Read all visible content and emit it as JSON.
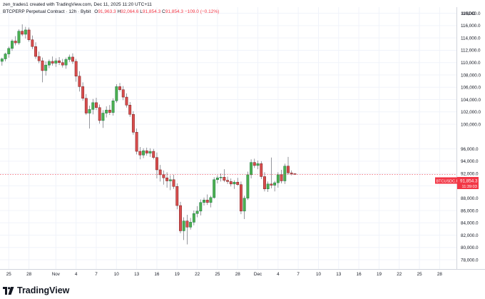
{
  "header": {
    "created_by": "zen_trades1 created with TradingView.com, Dec 11, 2025 11:20 UTC+11",
    "symbol_line": "BTCPERP Perpetual Contract · 12h · Bybit",
    "ohlc": {
      "o_label": "O",
      "o": "91,963.3",
      "h_label": "H",
      "h": "92,064.6",
      "l_label": "L",
      "l": "91,854.3",
      "c_label": "C",
      "c": "91,854.3",
      "change": "−109.0 (−0.12%)"
    }
  },
  "price_axis": {
    "currency": "USDC"
  },
  "last_price_tag": {
    "symbol": "BTCUSDC.P",
    "price": "91,854.3",
    "countdown": "11:39:03"
  },
  "footer": {
    "brand": "TradingView"
  },
  "colors": {
    "up": "#26a69a",
    "down": "#ef5350",
    "up_fill": "#4caf50",
    "down_fill": "#d84d4d",
    "tag": "#f23645"
  },
  "chart_data": {
    "type": "candlestick",
    "y_unit": "USDC",
    "ylim": [
      76500,
      119000
    ],
    "y_ticks": [
      "78,000.0",
      "80,000.0",
      "82,000.0",
      "84,000.0",
      "86,000.0",
      "88,000.0",
      "90,000.0",
      "92,000.0",
      "94,000.0",
      "96,000.0",
      "100,000.0",
      "102,000.0",
      "104,000.0",
      "106,000.0",
      "108,000.0",
      "110,000.0",
      "112,000.0",
      "114,000.0",
      "116,000.0",
      "118,000.0"
    ],
    "y_tick_values": [
      78000,
      80000,
      82000,
      84000,
      86000,
      88000,
      90000,
      92000,
      94000,
      96000,
      100000,
      102000,
      104000,
      106000,
      108000,
      110000,
      112000,
      114000,
      116000,
      118000
    ],
    "x_tick_labels": [
      "25",
      "28",
      "Nov",
      "4",
      "7",
      "10",
      "13",
      "16",
      "19",
      "22",
      "25",
      "28",
      "Dec",
      "4",
      "7",
      "10",
      "13",
      "16",
      "19",
      "22",
      "25",
      "28"
    ],
    "x_tick_days": [
      -7,
      -4,
      0,
      3,
      6,
      9,
      12,
      15,
      18,
      21,
      24,
      27,
      30,
      33,
      36,
      39,
      42,
      45,
      48,
      51,
      54,
      57
    ],
    "x_range_days": [
      -8.3,
      59.5
    ],
    "bar_interval_days": 0.5,
    "first_bar_day": -8.0,
    "last_price": 91854.3,
    "candles": [
      [
        110200,
        110800,
        109500,
        110600
      ],
      [
        110600,
        111600,
        110200,
        111400
      ],
      [
        111400,
        112600,
        110800,
        112300
      ],
      [
        112300,
        113800,
        111900,
        113500
      ],
      [
        113500,
        114300,
        112800,
        113200
      ],
      [
        113200,
        115400,
        112900,
        115100
      ],
      [
        115100,
        116200,
        114300,
        114600
      ],
      [
        114600,
        115800,
        113900,
        115300
      ],
      [
        115300,
        115700,
        113400,
        113700
      ],
      [
        113700,
        114400,
        112200,
        112600
      ],
      [
        112600,
        113300,
        110600,
        111000
      ],
      [
        111000,
        111800,
        109900,
        110300
      ],
      [
        110300,
        110800,
        106800,
        108700
      ],
      [
        108700,
        110200,
        107900,
        109600
      ],
      [
        109600,
        110500,
        109100,
        110200
      ],
      [
        110200,
        111000,
        109500,
        109900
      ],
      [
        109900,
        110700,
        109300,
        110300
      ],
      [
        110300,
        110900,
        109600,
        110000
      ],
      [
        110000,
        110600,
        109200,
        109600
      ],
      [
        109600,
        110800,
        109000,
        110500
      ],
      [
        110500,
        111300,
        110100,
        110900
      ],
      [
        110900,
        111500,
        109800,
        110200
      ],
      [
        110200,
        110600,
        106900,
        107800
      ],
      [
        107800,
        108600,
        105300,
        106100
      ],
      [
        106100,
        106800,
        103800,
        104200
      ],
      [
        104200,
        104900,
        101500,
        101800
      ],
      [
        101800,
        103000,
        99300,
        102400
      ],
      [
        102400,
        104100,
        101600,
        103500
      ],
      [
        103500,
        104300,
        102300,
        102700
      ],
      [
        102700,
        103200,
        100100,
        100600
      ],
      [
        100600,
        102300,
        99400,
        101800
      ],
      [
        101800,
        102900,
        101100,
        102300
      ],
      [
        102300,
        103100,
        101500,
        101900
      ],
      [
        101900,
        104200,
        101400,
        103800
      ],
      [
        103800,
        106500,
        103500,
        106100
      ],
      [
        106100,
        106700,
        105300,
        105600
      ],
      [
        105600,
        106200,
        103900,
        104400
      ],
      [
        104400,
        105000,
        102700,
        103100
      ],
      [
        103100,
        103600,
        101200,
        101600
      ],
      [
        101600,
        102100,
        98300,
        98700
      ],
      [
        98700,
        99300,
        95100,
        95600
      ],
      [
        95600,
        96300,
        94300,
        95000
      ],
      [
        95000,
        96100,
        94500,
        95700
      ],
      [
        95700,
        96200,
        94900,
        95300
      ],
      [
        95300,
        96100,
        94700,
        95600
      ],
      [
        95600,
        96000,
        94300,
        94600
      ],
      [
        94600,
        95400,
        91200,
        92600
      ],
      [
        92600,
        93400,
        90700,
        91800
      ],
      [
        91800,
        92500,
        90200,
        91300
      ],
      [
        91300,
        92200,
        89700,
        90800
      ],
      [
        90800,
        91700,
        89300,
        91000
      ],
      [
        91000,
        91800,
        89500,
        89900
      ],
      [
        89900,
        90400,
        86200,
        86800
      ],
      [
        86800,
        87400,
        82300,
        82700
      ],
      [
        82700,
        84900,
        81200,
        84300
      ],
      [
        84300,
        85300,
        80500,
        83300
      ],
      [
        83300,
        84800,
        82900,
        84100
      ],
      [
        84100,
        86000,
        83600,
        85500
      ],
      [
        85500,
        86700,
        84900,
        85900
      ],
      [
        85900,
        87800,
        85200,
        87300
      ],
      [
        87300,
        88100,
        86800,
        87700
      ],
      [
        87700,
        88600,
        86900,
        87300
      ],
      [
        87300,
        88400,
        86500,
        88100
      ],
      [
        88100,
        91400,
        87900,
        91000
      ],
      [
        91000,
        91700,
        90400,
        91300
      ],
      [
        91300,
        92000,
        90700,
        91400
      ],
      [
        91400,
        92700,
        90600,
        90900
      ],
      [
        90900,
        91500,
        90300,
        90700
      ],
      [
        90700,
        91200,
        89900,
        90300
      ],
      [
        90300,
        90900,
        89500,
        90600
      ],
      [
        90600,
        91300,
        90000,
        90200
      ],
      [
        90200,
        90700,
        85400,
        85900
      ],
      [
        85900,
        88400,
        84600,
        88000
      ],
      [
        88000,
        92300,
        87700,
        91800
      ],
      [
        91800,
        94300,
        91200,
        93800
      ],
      [
        93800,
        94400,
        92900,
        93300
      ],
      [
        93300,
        94100,
        92700,
        93600
      ],
      [
        93600,
        94000,
        91100,
        91500
      ],
      [
        91500,
        92200,
        89100,
        89500
      ],
      [
        89500,
        90700,
        89000,
        90300
      ],
      [
        90300,
        94600,
        89600,
        90100
      ],
      [
        90100,
        90800,
        89100,
        90500
      ],
      [
        90500,
        92200,
        89700,
        91800
      ],
      [
        91800,
        92600,
        90400,
        90800
      ],
      [
        90800,
        93600,
        90300,
        93200
      ],
      [
        93200,
        94700,
        91800,
        92100
      ],
      [
        92100,
        92500,
        91700,
        91963.3
      ],
      [
        91963.3,
        92064.6,
        91854.3,
        91854.3
      ]
    ]
  }
}
